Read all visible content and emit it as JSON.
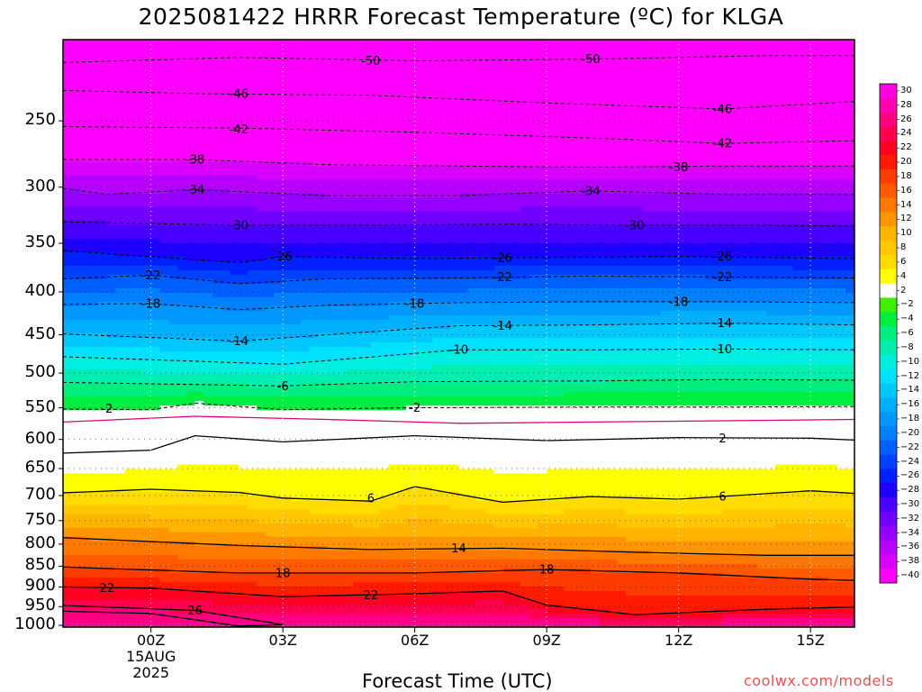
{
  "chart_data": {
    "type": "heatmap",
    "title": "2025081422 HRRR Forecast Temperature (ºC) for KLGA",
    "xlabel": "Forecast Time (UTC)",
    "ylabel": "",
    "credit": "coolwx.com/models",
    "x_ticks": [
      "00Z",
      "03Z",
      "06Z",
      "09Z",
      "12Z",
      "15Z"
    ],
    "x_tick_hours": [
      2,
      5,
      8,
      11,
      14,
      17
    ],
    "x_range_hours": [
      0,
      18
    ],
    "date_label": [
      "15AUG",
      "2025"
    ],
    "y_ticks": [
      250,
      300,
      350,
      400,
      450,
      500,
      550,
      600,
      650,
      700,
      750,
      800,
      850,
      900,
      950,
      1000
    ],
    "y_range_hpa": [
      200,
      1005
    ],
    "y_scale": "log-pressure",
    "colorbar": {
      "levels": [
        30,
        28,
        26,
        24,
        22,
        20,
        18,
        16,
        14,
        12,
        10,
        8,
        6,
        4,
        2,
        -2,
        -4,
        -6,
        -8,
        -10,
        -12,
        -14,
        -16,
        -18,
        -20,
        -22,
        -24,
        -26,
        -28,
        -30,
        -32,
        -34,
        -36,
        -38,
        -40
      ],
      "labels": [
        "30",
        "28",
        "26",
        "24",
        "22",
        "20",
        "18",
        "16",
        "14",
        "12",
        "10",
        "8",
        "6",
        "4",
        "2",
        "−2",
        "−4",
        "−6",
        "−8",
        "−10",
        "−12",
        "−14",
        "−16",
        "−18",
        "−20",
        "−22",
        "−24",
        "−26",
        "−28",
        "−30",
        "−32",
        "−34",
        "−36",
        "−38",
        "−40"
      ],
      "colors": [
        "#ff00e0",
        "#ff00b0",
        "#ff0080",
        "#ff0050",
        "#ff0020",
        "#ff1a00",
        "#ff3c00",
        "#ff5a00",
        "#ff7800",
        "#ff9600",
        "#ffb400",
        "#ffc800",
        "#ffdc00",
        "#ffff00",
        "#ffffff",
        "#40ee00",
        "#00ee40",
        "#00ee80",
        "#00eeb0",
        "#00eee0",
        "#00e0ff",
        "#00c8ff",
        "#00b0ff",
        "#0098ff",
        "#0080ff",
        "#0060ff",
        "#0040ff",
        "#0020ff",
        "#1e00ff",
        "#4a00ff",
        "#7000ff",
        "#9600ff",
        "#b800ff",
        "#d800ff",
        "#ff00ff"
      ]
    },
    "contours": [
      {
        "value": -50,
        "label": "-50",
        "dashed": true,
        "points": [
          [
            0,
            213
          ],
          [
            4,
            210
          ],
          [
            8,
            212
          ],
          [
            12,
            211
          ],
          [
            16,
            209
          ],
          [
            18,
            209
          ]
        ]
      },
      {
        "value": -46,
        "label": "-46",
        "dashed": true,
        "points": [
          [
            0,
            230
          ],
          [
            3,
            232
          ],
          [
            7,
            233
          ],
          [
            11,
            238
          ],
          [
            15,
            242
          ],
          [
            18,
            237
          ]
        ]
      },
      {
        "value": -42,
        "label": "-42",
        "dashed": true,
        "points": [
          [
            0,
            254
          ],
          [
            4,
            255
          ],
          [
            8,
            258
          ],
          [
            12,
            262
          ],
          [
            15,
            266
          ],
          [
            18,
            264
          ]
        ]
      },
      {
        "value": -38,
        "label": "-38",
        "dashed": true,
        "points": [
          [
            0,
            278
          ],
          [
            3,
            278
          ],
          [
            6,
            282
          ],
          [
            9,
            283
          ],
          [
            12,
            284
          ],
          [
            15,
            283
          ],
          [
            18,
            283
          ]
        ]
      },
      {
        "value": -34,
        "label": "-34",
        "dashed": true,
        "points": [
          [
            0,
            301
          ],
          [
            1,
            306
          ],
          [
            3,
            302
          ],
          [
            6,
            307
          ],
          [
            9,
            307
          ],
          [
            12,
            303
          ],
          [
            15,
            306
          ],
          [
            18,
            306
          ]
        ]
      },
      {
        "value": -30,
        "label": "-30",
        "dashed": true,
        "points": [
          [
            0,
            330
          ],
          [
            4,
            333
          ],
          [
            7,
            333
          ],
          [
            10,
            332
          ],
          [
            13,
            333
          ],
          [
            16,
            333
          ],
          [
            18,
            334
          ]
        ]
      },
      {
        "value": -26,
        "label": "-26",
        "dashed": true,
        "points": [
          [
            0,
            357
          ],
          [
            4,
            369
          ],
          [
            5,
            363
          ],
          [
            8,
            365
          ],
          [
            11,
            364
          ],
          [
            14,
            363
          ],
          [
            18,
            365
          ]
        ]
      },
      {
        "value": -22,
        "label": "-22",
        "dashed": true,
        "points": [
          [
            0,
            386
          ],
          [
            2,
            382
          ],
          [
            4,
            391
          ],
          [
            6,
            386
          ],
          [
            9,
            385
          ],
          [
            12,
            383
          ],
          [
            15,
            384
          ],
          [
            18,
            385
          ]
        ]
      },
      {
        "value": -18,
        "label": "-18",
        "dashed": true,
        "points": [
          [
            0,
            414
          ],
          [
            2,
            413
          ],
          [
            4,
            420
          ],
          [
            6,
            415
          ],
          [
            9,
            412
          ],
          [
            12,
            411
          ],
          [
            15,
            411
          ],
          [
            18,
            412
          ]
        ]
      },
      {
        "value": -14,
        "label": "-14",
        "dashed": true,
        "points": [
          [
            0,
            449
          ],
          [
            4,
            458
          ],
          [
            6,
            450
          ],
          [
            9,
            439
          ],
          [
            12,
            438
          ],
          [
            15,
            436
          ],
          [
            18,
            438
          ]
        ]
      },
      {
        "value": -10,
        "label": "-10",
        "dashed": true,
        "points": [
          [
            0,
            478
          ],
          [
            5,
            488
          ],
          [
            9,
            469
          ],
          [
            12,
            469
          ],
          [
            15,
            468
          ],
          [
            18,
            469
          ]
        ]
      },
      {
        "value": -6,
        "label": "-6",
        "dashed": true,
        "points": [
          [
            0,
            513
          ],
          [
            5,
            518
          ],
          [
            8,
            512
          ],
          [
            12,
            511
          ],
          [
            15,
            509
          ],
          [
            18,
            510
          ]
        ]
      },
      {
        "value": -2,
        "label": "-2",
        "dashed": true,
        "points": [
          [
            0,
            552
          ],
          [
            2,
            553
          ],
          [
            3,
            543
          ],
          [
            5,
            553
          ],
          [
            8,
            550
          ],
          [
            12,
            549
          ],
          [
            15,
            549
          ],
          [
            18,
            548
          ]
        ]
      },
      {
        "value": 2,
        "label": "2",
        "dashed": false,
        "points": [
          [
            0,
            623
          ],
          [
            2,
            618
          ],
          [
            3,
            594
          ],
          [
            5,
            604
          ],
          [
            8,
            594
          ],
          [
            11,
            602
          ],
          [
            14,
            597
          ],
          [
            17,
            598
          ],
          [
            18,
            601
          ]
        ]
      },
      {
        "value": 6,
        "label": "6",
        "dashed": false,
        "points": [
          [
            0,
            695
          ],
          [
            2,
            688
          ],
          [
            4,
            694
          ],
          [
            5,
            705
          ],
          [
            7,
            711
          ],
          [
            8,
            683
          ],
          [
            10,
            713
          ],
          [
            12,
            702
          ],
          [
            14,
            707
          ],
          [
            17,
            691
          ],
          [
            18,
            696
          ]
        ]
      },
      {
        "value": 14,
        "label": "14",
        "dashed": false,
        "points": [
          [
            0,
            786
          ],
          [
            4,
            803
          ],
          [
            7,
            812
          ],
          [
            10,
            809
          ],
          [
            13,
            818
          ],
          [
            16,
            825
          ],
          [
            18,
            825
          ]
        ]
      },
      {
        "value": 18,
        "label": "18",
        "dashed": false,
        "points": [
          [
            0,
            852
          ],
          [
            4,
            866
          ],
          [
            8,
            866
          ],
          [
            11,
            858
          ],
          [
            14,
            866
          ],
          [
            17,
            881
          ],
          [
            18,
            884
          ]
        ]
      },
      {
        "value": 22,
        "label": "22",
        "dashed": false,
        "points": [
          [
            0,
            900
          ],
          [
            2,
            903
          ],
          [
            5,
            924
          ],
          [
            8,
            917
          ],
          [
            10,
            910
          ],
          [
            11,
            946
          ],
          [
            13,
            971
          ],
          [
            16,
            957
          ],
          [
            18,
            951
          ]
        ]
      },
      {
        "value": 26,
        "label": "26",
        "dashed": false,
        "points": [
          [
            0,
            947
          ],
          [
            3,
            960
          ],
          [
            5,
            998
          ],
          [
            4,
            1002
          ],
          [
            2,
            968
          ],
          [
            0,
            962
          ]
        ]
      }
    ],
    "contour_labels": [
      {
        "label": "-50",
        "x": 7.0,
        "p": 212
      },
      {
        "label": "-50",
        "x": 12.0,
        "p": 211
      },
      {
        "label": "-46",
        "x": 4.0,
        "p": 232
      },
      {
        "label": "-46",
        "x": 15.0,
        "p": 242
      },
      {
        "label": "-42",
        "x": 4.0,
        "p": 256
      },
      {
        "label": "-42",
        "x": 15.0,
        "p": 266
      },
      {
        "label": "-38",
        "x": 3.0,
        "p": 278
      },
      {
        "label": "-38",
        "x": 14.0,
        "p": 284
      },
      {
        "label": "-34",
        "x": 3.0,
        "p": 302
      },
      {
        "label": "-34",
        "x": 12.0,
        "p": 303
      },
      {
        "label": "-30",
        "x": 4.0,
        "p": 333
      },
      {
        "label": "-30",
        "x": 13.0,
        "p": 333
      },
      {
        "label": "-26",
        "x": 5.0,
        "p": 363
      },
      {
        "label": "-26",
        "x": 10.0,
        "p": 364
      },
      {
        "label": "-26",
        "x": 15.0,
        "p": 363
      },
      {
        "label": "-22",
        "x": 2.0,
        "p": 382
      },
      {
        "label": "-22",
        "x": 10.0,
        "p": 384
      },
      {
        "label": "-22",
        "x": 15.0,
        "p": 384
      },
      {
        "label": "-18",
        "x": 2.0,
        "p": 413
      },
      {
        "label": "-18",
        "x": 8.0,
        "p": 413
      },
      {
        "label": "-18",
        "x": 14.0,
        "p": 411
      },
      {
        "label": "-14",
        "x": 4.0,
        "p": 458
      },
      {
        "label": "-14",
        "x": 10.0,
        "p": 439
      },
      {
        "label": "-14",
        "x": 15.0,
        "p": 436
      },
      {
        "label": "-10",
        "x": 9.0,
        "p": 469
      },
      {
        "label": "-10",
        "x": 15.0,
        "p": 468
      },
      {
        "label": "-6",
        "x": 5.0,
        "p": 518
      },
      {
        "label": "-2",
        "x": 1.0,
        "p": 551
      },
      {
        "label": "-2",
        "x": 8.0,
        "p": 550
      },
      {
        "label": "2",
        "x": 15.0,
        "p": 598
      },
      {
        "label": "6",
        "x": 7.0,
        "p": 705
      },
      {
        "label": "6",
        "x": 15.0,
        "p": 702
      },
      {
        "label": "14",
        "x": 9.0,
        "p": 809
      },
      {
        "label": "18",
        "x": 5.0,
        "p": 866
      },
      {
        "label": "18",
        "x": 11.0,
        "p": 858
      },
      {
        "label": "22",
        "x": 1.0,
        "p": 902
      },
      {
        "label": "22",
        "x": 7.0,
        "p": 920
      },
      {
        "label": "26",
        "x": 3.0,
        "p": 960
      }
    ],
    "grid": true,
    "ground_color": "#a0522d"
  }
}
